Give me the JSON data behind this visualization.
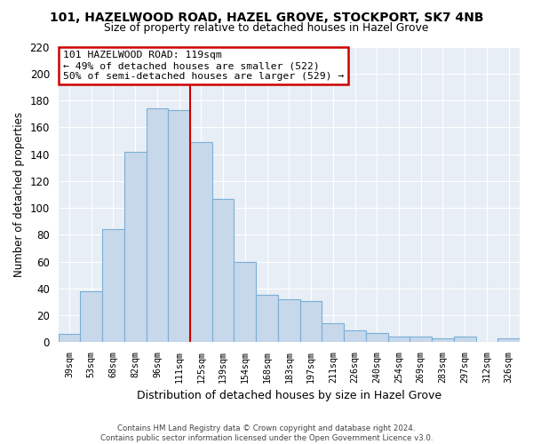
{
  "title": "101, HAZELWOOD ROAD, HAZEL GROVE, STOCKPORT, SK7 4NB",
  "subtitle": "Size of property relative to detached houses in Hazel Grove",
  "xlabel": "Distribution of detached houses by size in Hazel Grove",
  "ylabel": "Number of detached properties",
  "categories": [
    "39sqm",
    "53sqm",
    "68sqm",
    "82sqm",
    "96sqm",
    "111sqm",
    "125sqm",
    "139sqm",
    "154sqm",
    "168sqm",
    "183sqm",
    "197sqm",
    "211sqm",
    "226sqm",
    "240sqm",
    "254sqm",
    "269sqm",
    "283sqm",
    "297sqm",
    "312sqm",
    "326sqm"
  ],
  "values": [
    6,
    38,
    84,
    142,
    174,
    173,
    149,
    107,
    60,
    35,
    32,
    31,
    14,
    9,
    7,
    4,
    4,
    3,
    4,
    0,
    3
  ],
  "bar_color": "#c8d8eb",
  "bar_edge_color": "#7aafd4",
  "ref_line_color": "#cc0000",
  "annotation_title": "101 HAZELWOOD ROAD: 119sqm",
  "annotation_line1": "← 49% of detached houses are smaller (522)",
  "annotation_line2": "50% of semi-detached houses are larger (529) →",
  "annotation_box_color": "#ffffff",
  "annotation_box_edge": "#cc0000",
  "ylim": [
    0,
    220
  ],
  "yticks": [
    0,
    20,
    40,
    60,
    80,
    100,
    120,
    140,
    160,
    180,
    200,
    220
  ],
  "footer1": "Contains HM Land Registry data © Crown copyright and database right 2024.",
  "footer2": "Contains public sector information licensed under the Open Government Licence v3.0.",
  "background_color": "#ffffff",
  "plot_bg_color": "#e8eef5",
  "grid_color": "#ffffff"
}
